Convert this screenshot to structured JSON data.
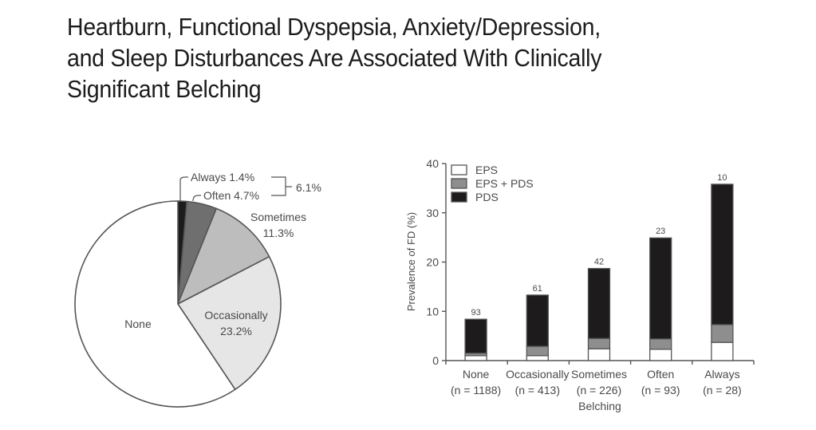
{
  "title_lines": [
    "Heartburn, Functional Dyspepsia, Anxiety/Depression,",
    "and Sleep Disturbances Are Associated With Clinically",
    "Significant Belching"
  ],
  "chart_data": [
    {
      "type": "pie",
      "title": "",
      "slices": [
        {
          "label": "Always",
          "value": 1.4,
          "display": "Always 1.4%",
          "color": "#1e1b1c"
        },
        {
          "label": "Often",
          "value": 4.7,
          "display": "Often 4.7%",
          "color": "#6f6f6f"
        },
        {
          "label": "Sometimes",
          "value": 11.3,
          "display_line1": "Sometimes",
          "display_line2": "11.3%",
          "color": "#bdbdbd"
        },
        {
          "label": "Occasionally",
          "value": 23.2,
          "display_line1": "Occasionally",
          "display_line2": "23.2%",
          "color": "#e6e6e6"
        },
        {
          "label": "None",
          "value": 59.4,
          "display_line1": "None",
          "color": "#ffffff"
        }
      ],
      "bracket_annotation": "6.1%",
      "direction": "clockwise from top"
    },
    {
      "type": "bar",
      "stacked": true,
      "categories": [
        "None",
        "Occasionally",
        "Sometimes",
        "Often",
        "Always"
      ],
      "category_n": [
        "(n = 1188)",
        "(n = 413)",
        "(n = 226)",
        "(n = 93)",
        "(n = 28)"
      ],
      "series": [
        {
          "name": "EPS",
          "color": "#ffffff",
          "values": [
            1.0,
            1.0,
            2.4,
            2.3,
            3.7
          ]
        },
        {
          "name": "EPS + PDS",
          "color": "#8e8e8e",
          "values": [
            0.5,
            1.9,
            2.1,
            2.1,
            3.6
          ]
        },
        {
          "name": "PDS",
          "color": "#1e1b1c",
          "values": [
            6.9,
            10.4,
            14.2,
            20.5,
            28.5
          ]
        }
      ],
      "totals": [
        8.4,
        13.3,
        18.7,
        24.9,
        35.8
      ],
      "bar_labels": [
        "93",
        "61",
        "42",
        "23",
        "10"
      ],
      "xlabel": "Belching",
      "ylabel": "Prevalence of FD (%)",
      "ylim": [
        0,
        40
      ],
      "yticks": [
        0,
        10,
        20,
        30,
        40
      ],
      "legend": {
        "placement": "top-left",
        "entries": [
          "EPS",
          "EPS + PDS",
          "PDS"
        ]
      },
      "grid": false
    }
  ]
}
